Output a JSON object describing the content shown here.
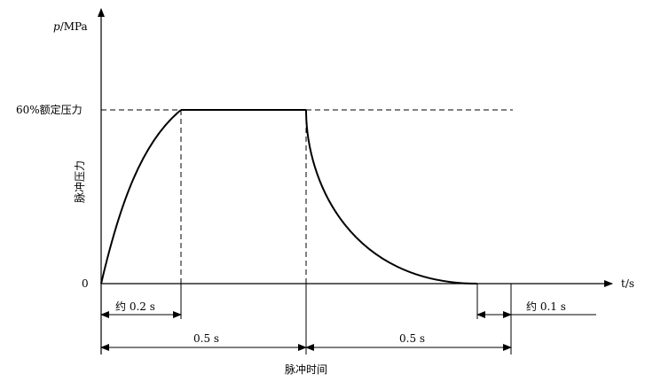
{
  "diagram": {
    "y_axis_symbol": "p",
    "y_axis_unit": "/MPa",
    "x_axis_label": "t/s",
    "level_label": "60%额定压力",
    "vertical_label": "脉冲压力",
    "origin_label": "0",
    "dim_rise": "约 0.2 s",
    "dim_hold": "0.5 s",
    "dim_fall": "0.5 s",
    "dim_tail": "约 0.1 s",
    "bottom_label": "脉冲时间"
  }
}
